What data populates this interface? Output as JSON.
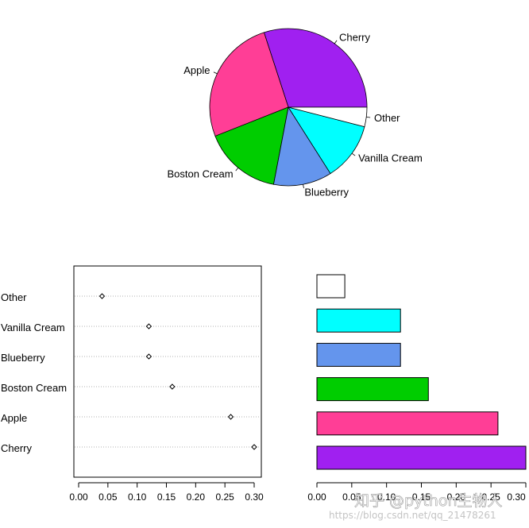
{
  "chart_data": [
    {
      "type": "pie",
      "categories": [
        "Cherry",
        "Apple",
        "Boston Cream",
        "Blueberry",
        "Vanilla Cream",
        "Other"
      ],
      "values": [
        0.3,
        0.26,
        0.16,
        0.12,
        0.12,
        0.04
      ],
      "colors": [
        "#A020F0",
        "#FF3E96",
        "#00CD00",
        "#6495ED",
        "#00FFFF",
        "#FFFFFF"
      ]
    },
    {
      "type": "scatter",
      "subtype": "dotchart",
      "categories": [
        "Cherry",
        "Apple",
        "Boston Cream",
        "Blueberry",
        "Vanilla Cream",
        "Other"
      ],
      "values": [
        0.3,
        0.26,
        0.16,
        0.12,
        0.12,
        0.04
      ],
      "xlim": [
        0,
        0.3
      ],
      "x_ticks": [
        "0.00",
        "0.05",
        "0.10",
        "0.15",
        "0.20",
        "0.25",
        "0.30"
      ],
      "grid": "dotted horizontal lines"
    },
    {
      "type": "bar",
      "orientation": "horizontal",
      "categories": [
        "Cherry",
        "Apple",
        "Boston Cream",
        "Blueberry",
        "Vanilla Cream",
        "Other"
      ],
      "values": [
        0.3,
        0.26,
        0.16,
        0.12,
        0.12,
        0.04
      ],
      "colors": [
        "#A020F0",
        "#FF3E96",
        "#00CD00",
        "#6495ED",
        "#00FFFF",
        "#FFFFFF"
      ],
      "xlim": [
        0,
        0.3
      ],
      "x_ticks": [
        "0.00",
        "0.05",
        "0.10",
        "0.15",
        "0.20",
        "0.25",
        "0.30"
      ]
    }
  ],
  "watermark": {
    "main": "知乎 @python生物人",
    "url": "https://blog.csdn.net/qq_21478261"
  }
}
